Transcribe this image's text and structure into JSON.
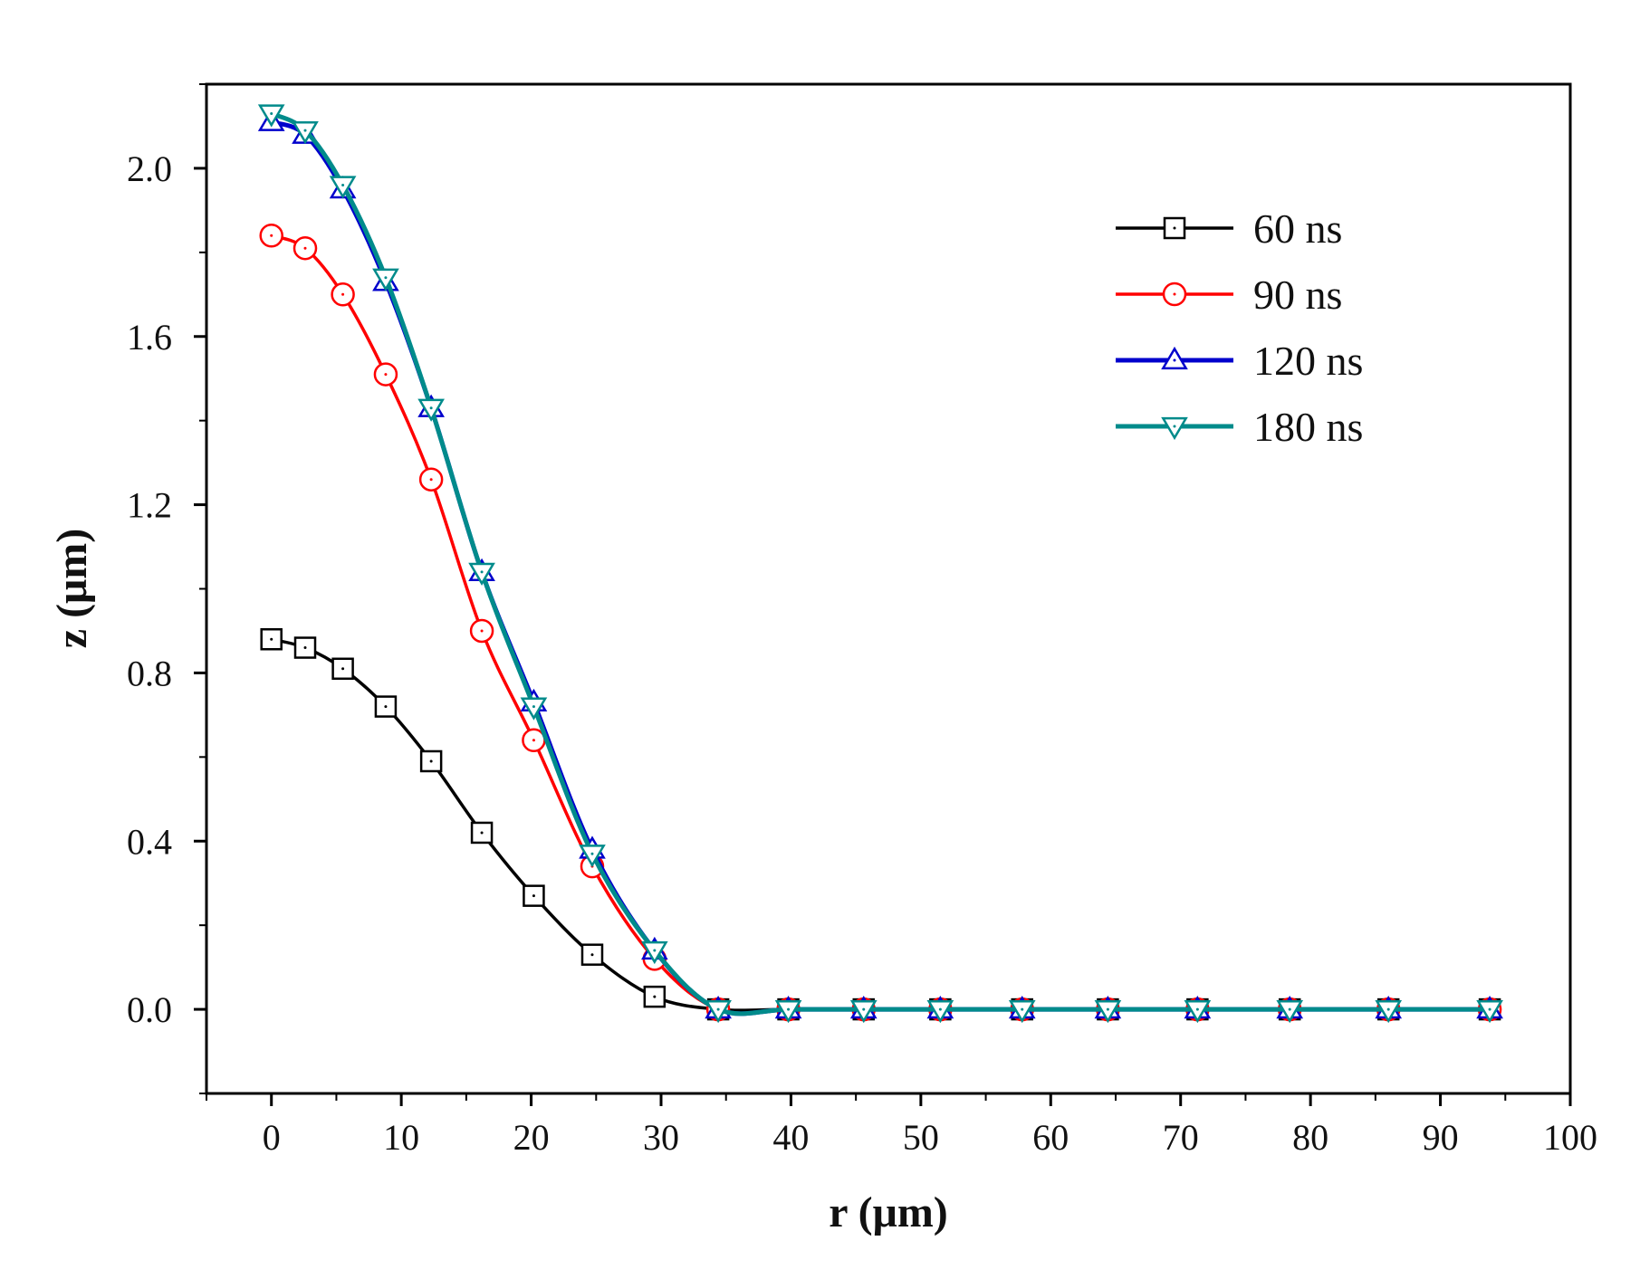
{
  "chart_data": {
    "type": "line",
    "title": "",
    "xlabel": "r (μm)",
    "ylabel": "z (μm)",
    "xlim": [
      -5,
      100
    ],
    "ylim": [
      -0.2,
      2.2
    ],
    "xticks": [
      0,
      10,
      20,
      30,
      40,
      50,
      60,
      70,
      80,
      90,
      100
    ],
    "yticks": [
      0.0,
      0.4,
      0.8,
      1.2,
      1.6,
      2.0
    ],
    "xtick_labels": [
      "0",
      "10",
      "20",
      "30",
      "40",
      "50",
      "60",
      "70",
      "80",
      "90",
      "100"
    ],
    "ytick_labels": [
      "0.0",
      "0.4",
      "0.8",
      "1.2",
      "1.6",
      "2.0"
    ],
    "grid": false,
    "legend_position": "top-right",
    "series": [
      {
        "name": "60 ns",
        "color": "#000000",
        "marker": "square",
        "x": [
          0,
          2.6,
          5.5,
          8.8,
          12.3,
          16.2,
          20.2,
          24.7,
          29.5,
          34.4,
          39.8,
          45.6,
          51.5,
          57.8,
          64.4,
          71.3,
          78.4,
          86.0,
          93.8
        ],
        "y": [
          0.88,
          0.86,
          0.81,
          0.72,
          0.59,
          0.42,
          0.27,
          0.13,
          0.03,
          0.0,
          0.0,
          0.0,
          0.0,
          0.0,
          0.0,
          0.0,
          0.0,
          0.0,
          0.0
        ]
      },
      {
        "name": "90 ns",
        "color": "#ff0000",
        "marker": "circle",
        "x": [
          0,
          2.6,
          5.5,
          8.8,
          12.3,
          16.2,
          20.2,
          24.7,
          29.5,
          34.4,
          39.8,
          45.6,
          51.5,
          57.8,
          64.4,
          71.3,
          78.4,
          86.0,
          93.8
        ],
        "y": [
          1.84,
          1.81,
          1.7,
          1.51,
          1.26,
          0.9,
          0.64,
          0.34,
          0.12,
          0.0,
          0.0,
          0.0,
          0.0,
          0.0,
          0.0,
          0.0,
          0.0,
          0.0,
          0.0
        ]
      },
      {
        "name": "120 ns",
        "color": "#0000cc",
        "marker": "triangle-up",
        "x": [
          0,
          2.6,
          5.5,
          8.8,
          12.3,
          16.2,
          20.2,
          24.7,
          29.5,
          34.4,
          39.8,
          45.6,
          51.5,
          57.8,
          64.4,
          71.3,
          78.4,
          86.0,
          93.8
        ],
        "y": [
          2.11,
          2.08,
          1.95,
          1.73,
          1.43,
          1.04,
          0.73,
          0.38,
          0.14,
          0.0,
          0.0,
          0.0,
          0.0,
          0.0,
          0.0,
          0.0,
          0.0,
          0.0,
          0.0
        ]
      },
      {
        "name": "180 ns",
        "color": "#008b8b",
        "marker": "triangle-down",
        "x": [
          0,
          2.6,
          5.5,
          8.8,
          12.3,
          16.2,
          20.2,
          24.7,
          29.5,
          34.4,
          39.8,
          45.6,
          51.5,
          57.8,
          64.4,
          71.3,
          78.4,
          86.0,
          93.8
        ],
        "y": [
          2.13,
          2.09,
          1.96,
          1.74,
          1.43,
          1.04,
          0.72,
          0.37,
          0.14,
          0.0,
          0.0,
          0.0,
          0.0,
          0.0,
          0.0,
          0.0,
          0.0,
          0.0,
          0.0
        ]
      }
    ]
  }
}
